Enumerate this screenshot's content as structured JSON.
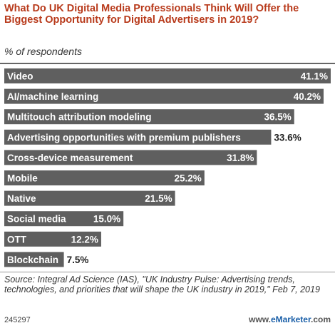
{
  "header": {
    "title": "What Do UK Digital Media Professionals Think Will Offer the Biggest Opportunity for Digital Advertisers in 2019?",
    "subtitle": "% of respondents"
  },
  "chart_data": {
    "type": "bar",
    "orientation": "horizontal",
    "title": "What Do UK Digital Media Professionals Think Will Offer the Biggest Opportunity for Digital Advertisers in 2019?",
    "subtitle": "% of respondents",
    "categories": [
      "Video",
      "AI/machine learning",
      "Multitouch attribution modeling",
      "Advertising opportunities with premium publishers",
      "Cross-device measurement",
      "Mobile",
      "Native",
      "Social media",
      "OTT",
      "Blockchain"
    ],
    "values": [
      41.1,
      40.2,
      36.5,
      33.6,
      31.8,
      25.2,
      21.5,
      15.0,
      12.2,
      7.5
    ],
    "value_labels": [
      "41.1%",
      "40.2%",
      "36.5%",
      "33.6%",
      "31.8%",
      "25.2%",
      "21.5%",
      "15.0%",
      "12.2%",
      "7.5%"
    ],
    "xlim": [
      0,
      41.1
    ],
    "grid": false,
    "legend": "none",
    "colors": {
      "bar": "#5f5f5f",
      "bar_label": "#ffffff",
      "value_inside": "#ffffff",
      "value_outside": "#222222"
    }
  },
  "footer": {
    "source": "Source: Integral Ad Science (IAS), \"UK Industry Pulse: Advertising trends, technologies, and priorities that will shape the UK industry in 2019,\" Feb 7, 2019",
    "chart_id": "245297",
    "brand_prefix": "www.",
    "brand_name": "eMarketer",
    "brand_suffix": ".com"
  }
}
